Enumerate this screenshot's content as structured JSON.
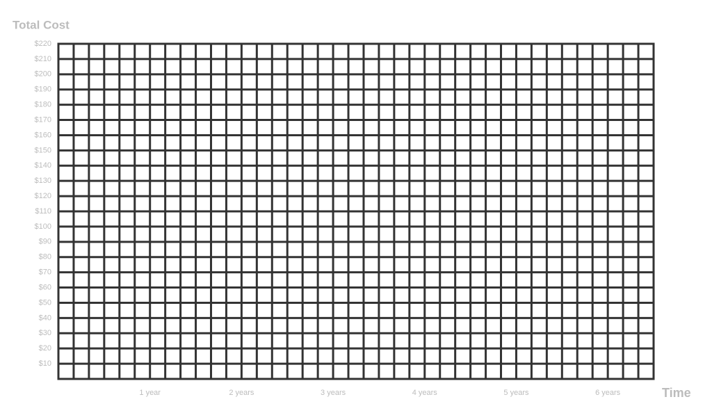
{
  "chart_data": {
    "type": "grid",
    "ylabel": "Total Cost",
    "xlabel": "Time",
    "xlim": [
      0,
      6.5
    ],
    "xticks": [
      {
        "value": 1,
        "label": "1 year"
      },
      {
        "value": 2,
        "label": "2 years"
      },
      {
        "value": 3,
        "label": "3 years"
      },
      {
        "value": 4,
        "label": "4 years"
      },
      {
        "value": 5,
        "label": "5 years"
      },
      {
        "value": 6,
        "label": "6 years"
      }
    ],
    "ylim": [
      0,
      220
    ],
    "yticks": [
      {
        "value": 10,
        "label": "$10"
      },
      {
        "value": 20,
        "label": "$20"
      },
      {
        "value": 30,
        "label": "$30"
      },
      {
        "value": 40,
        "label": "$40"
      },
      {
        "value": 50,
        "label": "$50"
      },
      {
        "value": 60,
        "label": "$60"
      },
      {
        "value": 70,
        "label": "$70"
      },
      {
        "value": 80,
        "label": "$80"
      },
      {
        "value": 90,
        "label": "$90"
      },
      {
        "value": 100,
        "label": "$100"
      },
      {
        "value": 110,
        "label": "$110"
      },
      {
        "value": 120,
        "label": "$120"
      },
      {
        "value": 130,
        "label": "$130"
      },
      {
        "value": 140,
        "label": "$140"
      },
      {
        "value": 150,
        "label": "$150"
      },
      {
        "value": 160,
        "label": "$160"
      },
      {
        "value": 170,
        "label": "$170"
      },
      {
        "value": 180,
        "label": "$180"
      },
      {
        "value": 190,
        "label": "$190"
      },
      {
        "value": 200,
        "label": "$200"
      },
      {
        "value": 210,
        "label": "$210"
      },
      {
        "value": 220,
        "label": "$220"
      }
    ],
    "grid": true,
    "grid_color": "#333333"
  }
}
